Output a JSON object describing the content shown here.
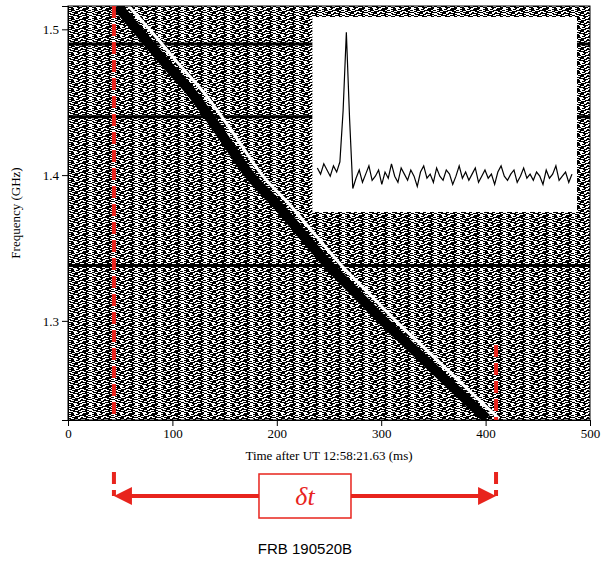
{
  "chart_data": {
    "type": "dynamic_spectrum",
    "xlabel": "Time after UT 12:58:21.63 (ms)",
    "ylabel": "Frequency (GHz)",
    "xlim": [
      0,
      500
    ],
    "xticks": [
      0,
      100,
      200,
      300,
      400,
      500
    ],
    "ylim": [
      1.232,
      1.516
    ],
    "yticks": [
      1.3,
      1.4,
      1.5
    ],
    "burst": {
      "x": [
        47,
        66,
        92,
        120,
        147,
        174,
        200,
        226,
        250,
        276,
        302,
        327,
        352,
        377,
        401
      ],
      "y": [
        1.516,
        1.5,
        1.478,
        1.455,
        1.428,
        1.4,
        1.38,
        1.358,
        1.338,
        1.319,
        1.3,
        1.283,
        1.266,
        1.249,
        1.233
      ]
    },
    "guide": {
      "x": [
        58,
        78,
        104,
        132,
        159,
        186,
        212,
        238,
        262,
        288,
        314,
        339,
        364,
        389,
        413
      ],
      "y": [
        1.516,
        1.5,
        1.478,
        1.455,
        1.428,
        1.4,
        1.38,
        1.358,
        1.338,
        1.319,
        1.3,
        1.283,
        1.266,
        1.249,
        1.233
      ]
    },
    "rfi_frequencies": [
      1.49,
      1.44,
      1.338
    ],
    "inset_profile": {
      "ylim": [
        0.15,
        1.05
      ],
      "values": [
        0.34,
        0.31,
        0.36,
        0.33,
        0.3,
        0.35,
        0.32,
        0.37,
        0.62,
        1.0,
        0.58,
        0.24,
        0.29,
        0.33,
        0.27,
        0.31,
        0.35,
        0.28,
        0.3,
        0.33,
        0.26,
        0.32,
        0.29,
        0.36,
        0.3,
        0.27,
        0.34,
        0.31,
        0.28,
        0.33,
        0.3,
        0.25,
        0.32,
        0.35,
        0.29,
        0.31,
        0.27,
        0.34,
        0.3,
        0.28,
        0.33,
        0.31,
        0.26,
        0.3,
        0.35,
        0.29,
        0.32,
        0.28,
        0.31,
        0.34,
        0.27,
        0.3,
        0.33,
        0.29,
        0.31,
        0.26,
        0.32,
        0.35,
        0.3,
        0.28,
        0.31,
        0.33,
        0.27,
        0.3,
        0.34,
        0.29,
        0.31,
        0.28,
        0.32,
        0.3,
        0.26,
        0.33,
        0.29,
        0.31,
        0.35,
        0.28,
        0.3,
        0.32,
        0.27,
        0.31
      ]
    },
    "delta_t": {
      "label": "δt",
      "start": 44,
      "end": 410,
      "color": "#e8241d"
    },
    "caption": "FRB 190520B"
  }
}
